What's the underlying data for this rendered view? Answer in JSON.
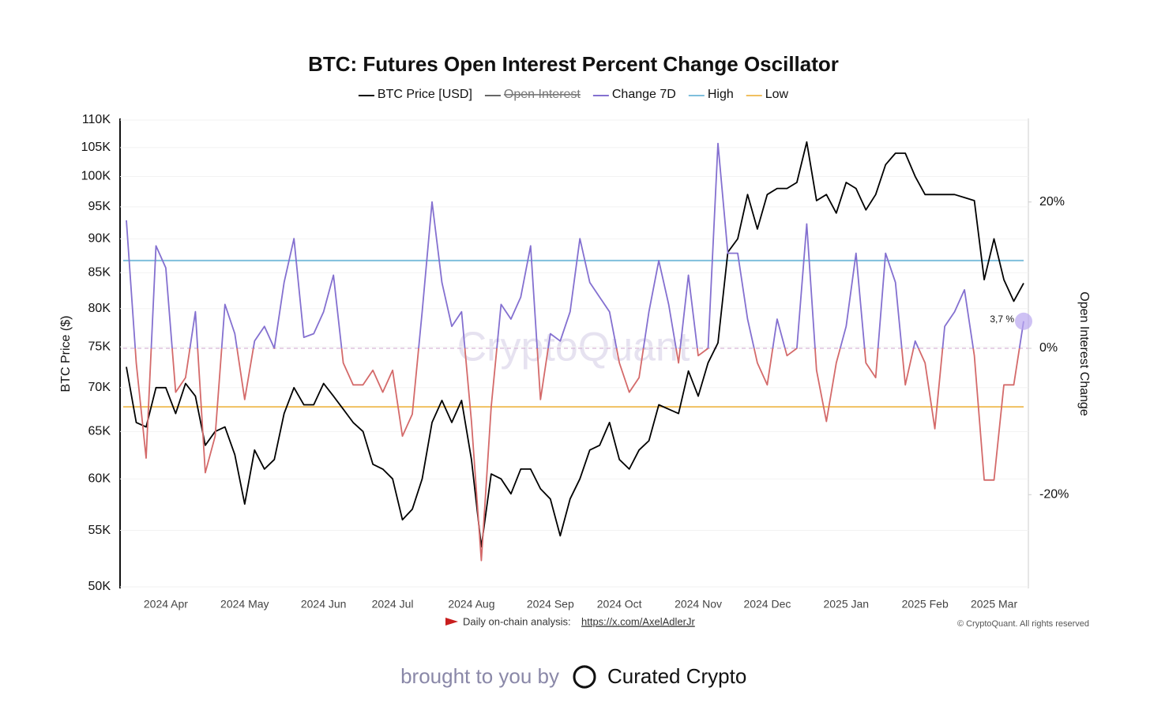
{
  "chart_data": {
    "type": "line",
    "title": "BTC: Futures Open Interest Percent Change Oscillator",
    "ylabel": "BTC Price ($)",
    "y2label": "Open Interest Change",
    "watermark": "CryptoQuant",
    "categories": [
      null,
      null,
      null,
      null,
      "2024 Apr",
      null,
      null,
      null,
      null,
      null,
      null,
      null,
      "2024 May",
      null,
      null,
      null,
      null,
      null,
      null,
      null,
      "2024 Jun",
      null,
      null,
      null,
      null,
      null,
      null,
      "2024 Jul",
      null,
      null,
      null,
      null,
      null,
      null,
      null,
      "2024 Aug",
      null,
      null,
      null,
      null,
      null,
      null,
      null,
      "2024 Sep",
      null,
      null,
      null,
      null,
      null,
      null,
      "2024 Oct",
      null,
      null,
      null,
      null,
      null,
      null,
      null,
      "2024 Nov",
      null,
      null,
      null,
      null,
      null,
      null,
      "2024 Dec",
      null,
      null,
      null,
      null,
      null,
      null,
      null,
      "2025 Jan",
      null,
      null,
      null,
      null,
      null,
      null,
      null,
      "2025 Feb",
      null,
      null,
      null,
      null,
      null,
      null,
      "2025 Mar",
      null,
      null,
      null
    ],
    "series": [
      {
        "name": "BTC Price [USD]",
        "color": "#000000",
        "values": [
          72500,
          66000,
          65500,
          70000,
          70000,
          67000,
          70500,
          69000,
          63500,
          65000,
          65500,
          62500,
          57500,
          63000,
          61000,
          62000,
          67000,
          70000,
          68000,
          68000,
          70500,
          69000,
          67500,
          66000,
          65000,
          61500,
          61000,
          60000,
          56000,
          57000,
          60000,
          66000,
          68500,
          66000,
          68500,
          62000,
          53500,
          60500,
          60000,
          58500,
          61000,
          61000,
          59000,
          58000,
          54500,
          58000,
          60000,
          63000,
          63500,
          66000,
          62000,
          61000,
          63000,
          64000,
          68000,
          67500,
          67000,
          72000,
          69000,
          73000,
          75500,
          88000,
          90000,
          97000,
          91500,
          97000,
          98000,
          98000,
          99000,
          106000,
          96000,
          97000,
          94000,
          99000,
          98000,
          94500,
          97000,
          102000,
          104000,
          104000,
          100000,
          97000,
          97000,
          97000,
          97000,
          96500,
          96000,
          84000,
          90000,
          84000,
          81000,
          83500
        ]
      },
      {
        "name": "Change 7D",
        "color": "#8470d0",
        "negative_color": "#d46a6a",
        "axis": "y2",
        "values": [
          17.5,
          -2,
          -15,
          14,
          11,
          -6,
          -4,
          5,
          -17,
          -12,
          6,
          2,
          -7,
          1,
          3,
          0,
          9,
          15,
          1.5,
          2,
          5,
          10,
          -2,
          -5,
          -5,
          -3,
          -6,
          -3,
          -12,
          -9,
          5,
          20,
          9,
          3,
          5,
          -10,
          -29,
          -8,
          6,
          4,
          7,
          14,
          -7,
          2,
          1,
          5,
          15,
          9,
          7,
          5,
          -2,
          -6,
          -4,
          5,
          12,
          6,
          -2,
          10,
          -1,
          0,
          28,
          13,
          13,
          4,
          -2,
          -5,
          4,
          -1,
          0,
          17,
          -3,
          -10,
          -2,
          3,
          13,
          -2,
          -4,
          13,
          9,
          -5,
          1,
          -2,
          -11,
          3,
          5,
          8,
          -1,
          -18,
          -18,
          -5,
          -5,
          3.7
        ]
      }
    ],
    "hidden_series": [
      {
        "name": "Open Interest",
        "color": "#666666"
      }
    ],
    "reference_lines": [
      {
        "name": "High",
        "color": "#7fbfdc",
        "value": 12
      },
      {
        "name": "Low",
        "color": "#f0c060",
        "value": -8
      }
    ],
    "zero_line": true,
    "annotation": {
      "text": "3,7 %"
    },
    "yscale": "log",
    "ylim": [
      50000,
      110000
    ],
    "yticks": [
      {
        "value": 50000,
        "label": "50K"
      },
      {
        "value": 55000,
        "label": "55K"
      },
      {
        "value": 60000,
        "label": "60K"
      },
      {
        "value": 65000,
        "label": "65K"
      },
      {
        "value": 70000,
        "label": "70K"
      },
      {
        "value": 75000,
        "label": "75K"
      },
      {
        "value": 80000,
        "label": "80K"
      },
      {
        "value": 85000,
        "label": "85K"
      },
      {
        "value": 90000,
        "label": "90K"
      },
      {
        "value": 95000,
        "label": "95K"
      },
      {
        "value": 100000,
        "label": "100K"
      },
      {
        "value": 105000,
        "label": "105K"
      },
      {
        "value": 110000,
        "label": "110K"
      }
    ],
    "y2lim": [
      -32.6,
      31.2
    ],
    "y2ticks": [
      {
        "value": -20,
        "label": "-20%"
      },
      {
        "value": 0,
        "label": "0%"
      },
      {
        "value": 20,
        "label": "20%"
      }
    ],
    "grid": true
  },
  "footer": {
    "source_prefix": "Daily on-chain analysis:",
    "source_link": "https://x.com/AxelAdlerJr",
    "copyright": "© CryptoQuant. All rights reserved",
    "brought_by": "brought to you by",
    "brand": "Curated Crypto"
  }
}
